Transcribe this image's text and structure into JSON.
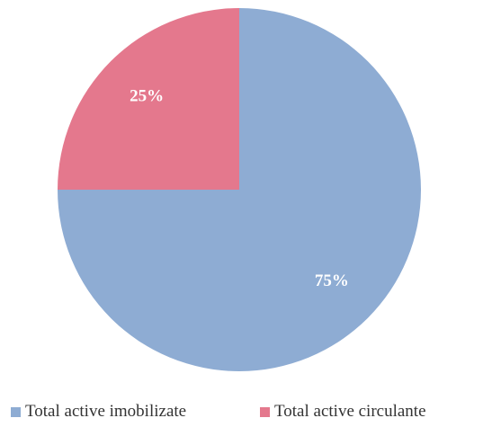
{
  "chart_data": {
    "type": "pie",
    "series": [
      {
        "name": "Total active imobilizate",
        "value": 75,
        "label": "75%",
        "color": "#8eacd3"
      },
      {
        "name": "Total active circulante",
        "value": 25,
        "label": "25%",
        "color": "#e4788d"
      }
    ],
    "start_angle_deg": 0,
    "direction": "clockwise",
    "legend_position": "bottom"
  }
}
